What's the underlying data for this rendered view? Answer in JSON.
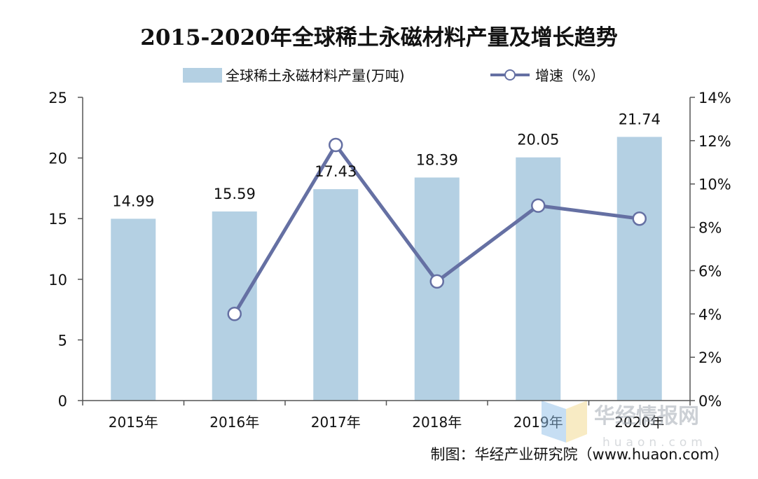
{
  "chart_data": {
    "type": "bar",
    "title": "2015-2020年全球稀土永磁材料产量及增长趋势",
    "categories": [
      "2015年",
      "2016年",
      "2017年",
      "2018年",
      "2019年",
      "2020年"
    ],
    "series": [
      {
        "name": "全球稀土永磁材料产量(万吨)",
        "type": "bar",
        "axis": "left",
        "values": [
          14.99,
          15.59,
          17.43,
          18.39,
          20.05,
          21.74
        ],
        "data_labels": [
          "14.99",
          "15.59",
          "17.43",
          "18.39",
          "20.05",
          "21.74"
        ]
      },
      {
        "name": "增速（%）",
        "type": "line",
        "axis": "right",
        "values": [
          null,
          4.0,
          11.8,
          5.5,
          9.0,
          8.4
        ]
      }
    ],
    "y_left": {
      "ylim": [
        0,
        25
      ],
      "ticks": [
        "0",
        "5",
        "10",
        "15",
        "20",
        "25"
      ],
      "tick_values": [
        0,
        5,
        10,
        15,
        20,
        25
      ]
    },
    "y_right": {
      "ylim": [
        0,
        14
      ],
      "ticks": [
        "0%",
        "2%",
        "4%",
        "6%",
        "8%",
        "10%",
        "12%",
        "14%"
      ],
      "tick_values": [
        0,
        2,
        4,
        6,
        8,
        10,
        12,
        14
      ]
    },
    "legend_position": "top-center",
    "colors": {
      "bar": "#b4d0e3",
      "line": "#6570a3",
      "axis": "#555555",
      "text": "#111111"
    },
    "source": "制图：华经产业研究院（www.huaon.com）",
    "watermark": {
      "brand": "华经情报网",
      "domain": "huaon.com"
    }
  }
}
